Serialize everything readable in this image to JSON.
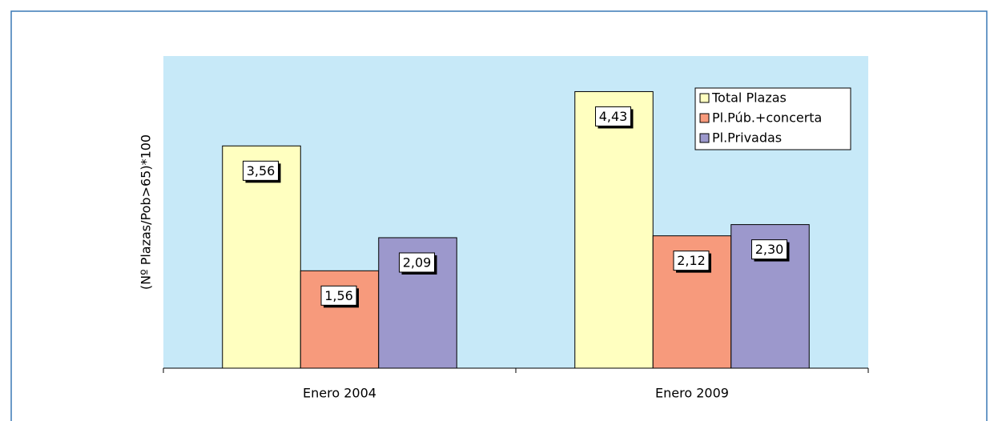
{
  "chart_data": {
    "type": "bar",
    "y_label": "(Nº Plazas/Pob>65)*100",
    "categories": [
      "Enero 2004",
      "Enero 2009"
    ],
    "series": [
      {
        "name": "Total Plazas",
        "color": "#ffffc0",
        "values": [
          3.56,
          4.43
        ],
        "value_labels": [
          "3,56",
          "4,43"
        ]
      },
      {
        "name": "Pl.Púb.+concerta",
        "color": "#f79a7c",
        "values": [
          1.56,
          2.12
        ],
        "value_labels": [
          "1,56",
          "2,12"
        ]
      },
      {
        "name": "Pl.Privadas",
        "color": "#9c98cc",
        "values": [
          2.09,
          2.3
        ],
        "value_labels": [
          "2,09",
          "2,30"
        ]
      }
    ],
    "ylim": [
      0,
      5
    ],
    "legend": "upper right"
  }
}
